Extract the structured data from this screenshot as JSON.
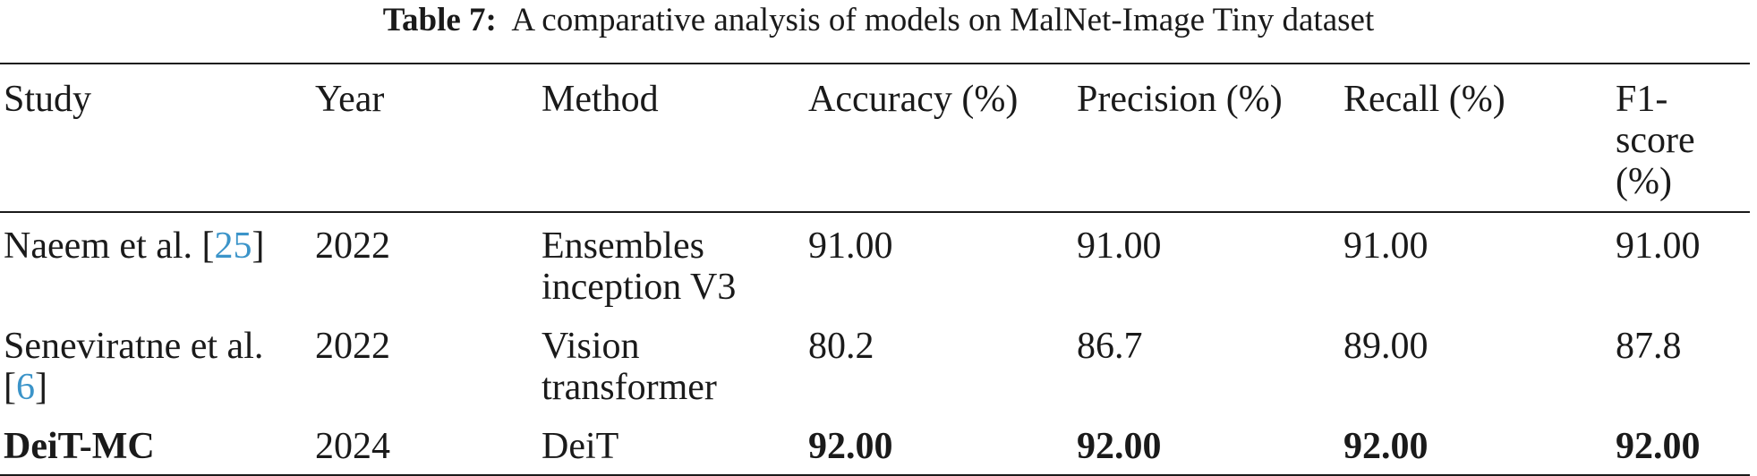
{
  "caption": {
    "label": "Table 7:",
    "text": "A comparative analysis of models on MalNet-Image Tiny dataset"
  },
  "columns": [
    "Study",
    "Year",
    "Method",
    "Accuracy (%)",
    "Precision (%)",
    "Recall (%)",
    "F1-score (%)"
  ],
  "rows": [
    {
      "study": "Naeem et al. [",
      "ref": "25",
      "study_end": "]",
      "year": "2022",
      "method": "Ensembles inception V3",
      "accuracy": "91.00",
      "precision": "91.00",
      "recall": "91.00",
      "f1": "91.00"
    },
    {
      "study": "Seneviratne et al. [",
      "ref": "6",
      "study_end": "]",
      "year": "2022",
      "method": "Vision transformer",
      "accuracy": "80.2",
      "precision": "86.7",
      "recall": "89.00",
      "f1": "87.8"
    },
    {
      "study": "DeiT-MC",
      "year": "2024",
      "method": "DeiT",
      "accuracy": "92.00",
      "precision": "92.00",
      "recall": "92.00",
      "f1": "92.00"
    }
  ],
  "colors": {
    "reference_link": "#3b94c9",
    "text": "#1a1a1a"
  }
}
